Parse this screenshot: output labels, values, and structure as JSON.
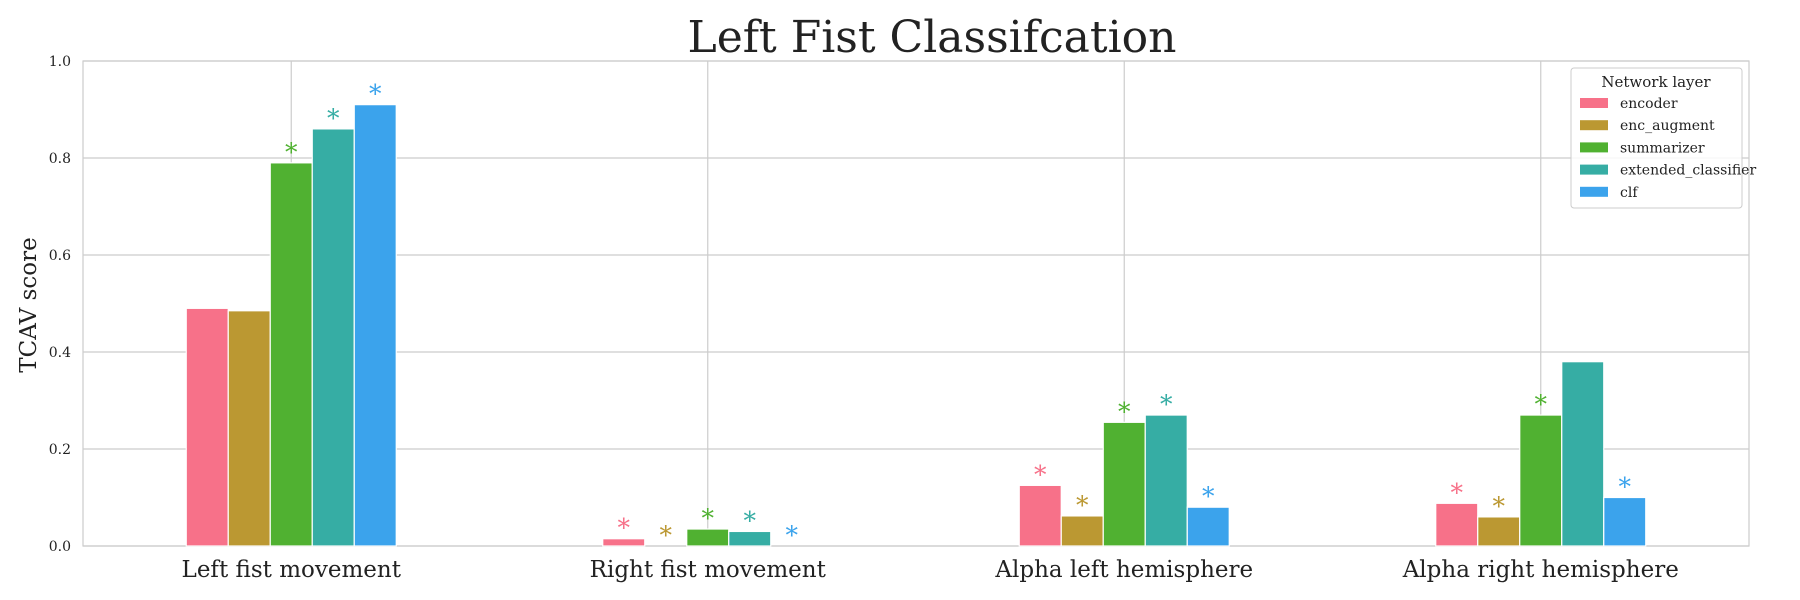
{
  "chart_data": {
    "type": "bar",
    "title": "Left Fist Classifcation",
    "xlabel": "",
    "ylabel": "TCAV score",
    "ylim": [
      0,
      1.0
    ],
    "yticks": [
      "0.0",
      "0.2",
      "0.4",
      "0.6",
      "0.8",
      "1.0"
    ],
    "grid": true,
    "legend": {
      "title": "Network layer",
      "placement": "top-right"
    },
    "significance_marker": "*",
    "categories": [
      "Left fist movement",
      "Right fist movement",
      "Alpha left hemisphere",
      "Alpha right hemisphere"
    ],
    "series": [
      {
        "name": "encoder",
        "color": "#f77189",
        "values": [
          0.49,
          0.015,
          0.125,
          0.088
        ],
        "significant": [
          false,
          true,
          true,
          true
        ]
      },
      {
        "name": "enc_augment",
        "color": "#bb9832",
        "values": [
          0.485,
          0.0,
          0.062,
          0.06
        ],
        "significant": [
          false,
          true,
          true,
          true
        ]
      },
      {
        "name": "summarizer",
        "color": "#50b131",
        "values": [
          0.79,
          0.035,
          0.255,
          0.27
        ],
        "significant": [
          true,
          true,
          true,
          true
        ]
      },
      {
        "name": "extended_classifier",
        "color": "#36ada4",
        "values": [
          0.86,
          0.03,
          0.27,
          0.38
        ],
        "significant": [
          true,
          true,
          true,
          false
        ]
      },
      {
        "name": "clf",
        "color": "#3ba3ec",
        "values": [
          0.91,
          0.0,
          0.08,
          0.1
        ],
        "significant": [
          true,
          true,
          true,
          true
        ]
      }
    ]
  }
}
